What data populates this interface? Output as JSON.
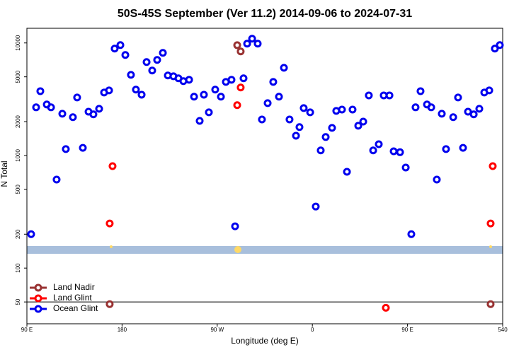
{
  "chart_data": {
    "type": "scatter",
    "title": "50S-45S September (Ver 11.2)   2014-09-06 to 2024-07-31",
    "xlabel": "Longitude (deg E)",
    "ylabel": "N Total",
    "xlim": [
      90,
      540
    ],
    "xticks": [
      {
        "value": 90,
        "label": "90 E"
      },
      180,
      {
        "value": 270,
        "label": "90 W"
      },
      {
        "value": 360,
        "label": "0"
      },
      {
        "value": 450,
        "label": "90 E"
      },
      540
    ],
    "ylim": [
      32,
      13500
    ],
    "log_y": true,
    "yticks": [
      50,
      100,
      200,
      500,
      1000,
      2000,
      5000,
      10000
    ],
    "hline": 50,
    "legend": "bottom-left",
    "series": [
      {
        "name": "Land Nadir",
        "color": "#993333",
        "x": [
          168.3,
          288.9,
          292.2,
          528.6
        ],
        "values": [
          47.8,
          9550,
          8410,
          47.8
        ]
      },
      {
        "name": "Land Glint",
        "color": "#ff0000",
        "x": [
          168.3,
          171.0,
          288.9,
          292.2,
          429.5,
          528.6,
          530.6
        ],
        "values": [
          249,
          805,
          2800,
          4020,
          44.4,
          249,
          805
        ]
      },
      {
        "name": "Ocean Glint",
        "color": "#0000ee",
        "x": [
          94.0,
          98.7,
          102.7,
          108.8,
          112.8,
          118.1,
          123.5,
          126.8,
          133.5,
          137.5,
          142.9,
          148.3,
          152.9,
          158.3,
          163.0,
          167.7,
          173.0,
          178.4,
          183.1,
          188.4,
          193.1,
          198.5,
          203.2,
          208.5,
          213.2,
          218.6,
          223.3,
          228.6,
          233.3,
          238.0,
          243.4,
          248.1,
          253.4,
          257.4,
          262.1,
          268.1,
          273.5,
          278.2,
          283.5,
          286.9,
          294.9,
          298.3,
          303.0,
          308.3,
          312.3,
          317.7,
          323.0,
          328.4,
          333.1,
          338.4,
          344.5,
          347.8,
          351.8,
          357.9,
          363.2,
          367.9,
          372.6,
          378.6,
          382.6,
          388.0,
          392.7,
          398.0,
          403.4,
          408.1,
          413.4,
          417.5,
          422.8,
          427.5,
          432.9,
          436.9,
          442.9,
          448.3,
          453.6,
          457.6,
          462.3,
          468.4,
          472.4,
          477.7,
          482.4,
          486.4,
          493.2,
          497.8,
          502.5,
          507.2,
          512.6,
          517.9,
          522.6,
          527.3,
          532.6,
          537.3
        ],
        "values": [
          200,
          2680,
          3730,
          2840,
          2680,
          611,
          2350,
          1140,
          2190,
          3280,
          1170,
          2450,
          2320,
          2600,
          3630,
          3790,
          8910,
          9580,
          7820,
          5210,
          3850,
          3470,
          6770,
          5690,
          7070,
          8170,
          5140,
          5060,
          4850,
          4580,
          4710,
          3330,
          2030,
          3470,
          2420,
          3850,
          3330,
          4510,
          4710,
          235,
          4850,
          9860,
          10900,
          9860,
          2090,
          2920,
          4510,
          3330,
          6020,
          2090,
          1500,
          1790,
          2640,
          2420,
          352,
          1110,
          1460,
          1760,
          2490,
          2560,
          717,
          2560,
          1840,
          2000,
          3420,
          1110,
          1260,
          3420,
          3420,
          1090,
          1070,
          782,
          200,
          2680,
          3730,
          2840,
          2680,
          611,
          2350,
          1140,
          2190,
          3280,
          1170,
          2450,
          2320,
          2600,
          3630,
          3790,
          8910,
          9580
        ]
      }
    ]
  }
}
